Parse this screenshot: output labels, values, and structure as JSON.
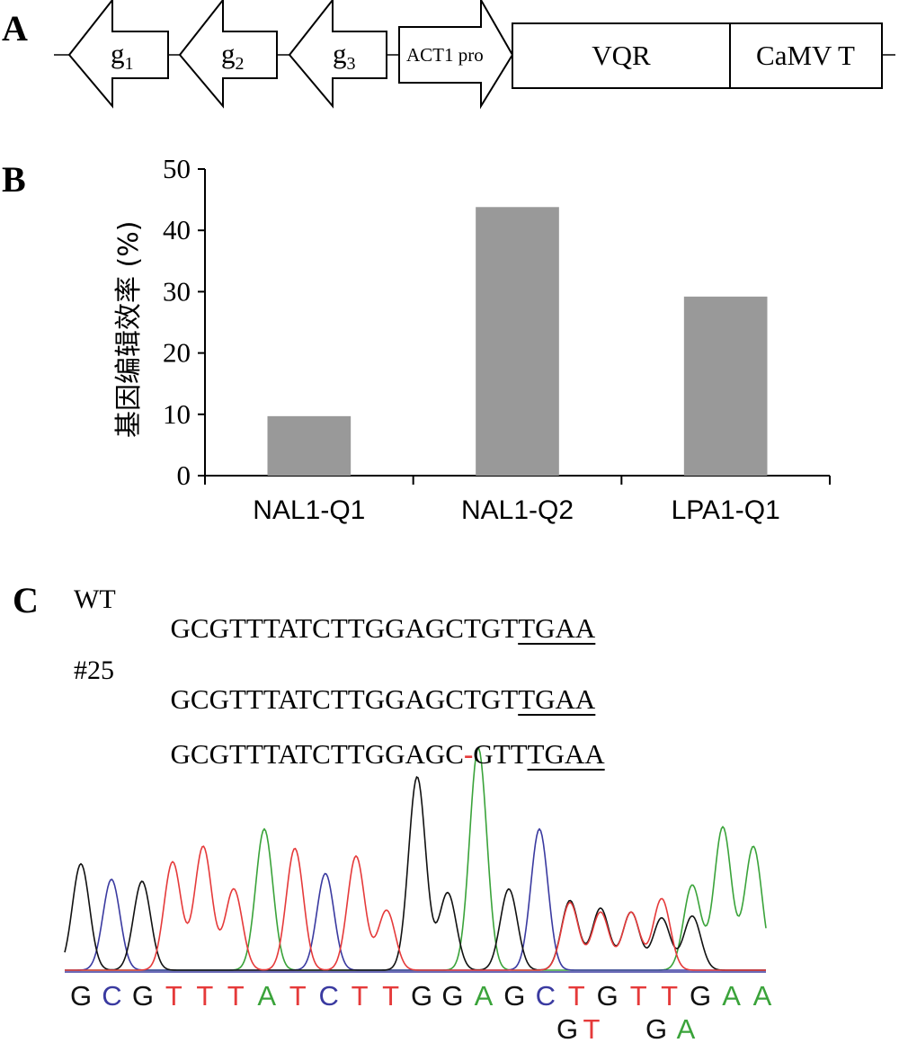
{
  "panels": {
    "a": "A",
    "b": "B",
    "c": "C"
  },
  "construct": {
    "elements": [
      {
        "label": "g",
        "subscript": "1",
        "shape": "arrow-left"
      },
      {
        "label": "g",
        "subscript": "2",
        "shape": "arrow-left"
      },
      {
        "label": "g",
        "subscript": "3",
        "shape": "arrow-left"
      },
      {
        "label": "ACT1 pro",
        "subscript": "",
        "shape": "arrow-right"
      },
      {
        "label": "VQR",
        "subscript": "",
        "shape": "box"
      },
      {
        "label": "CaMV T",
        "subscript": "",
        "shape": "box"
      }
    ]
  },
  "chart_data": {
    "type": "bar",
    "categories": [
      "NAL1-Q1",
      "NAL1-Q2",
      "LPA1-Q1"
    ],
    "values": [
      9.7,
      43.8,
      29.2
    ],
    "ylabel": "基因编辑效率 (%)",
    "xlabel": "",
    "ylim": [
      0,
      50
    ],
    "yticks": [
      0,
      10,
      20,
      30,
      40,
      50
    ],
    "grid": false,
    "bar_color": "#999999"
  },
  "sequences": {
    "wt_label": "WT",
    "wt_main": "GCGTTTATCTTGGAGCTGT",
    "wt_underlined": "TGAA",
    "mut_label": "#25",
    "mut1_main": "GCGTTTATCTTGGAGCTGT",
    "mut1_underlined": "TGAA",
    "mut2_part1": "GCGTTTATCTTGGAGC",
    "mut2_deletion": "-",
    "mut2_part2": "GTT",
    "mut2_underlined": "TGAA"
  },
  "chromatogram": {
    "base_colors": {
      "A": "#3aa33a",
      "C": "#3a3aa0",
      "G": "#111111",
      "T": "#e53a3a"
    },
    "called_bases": [
      "G",
      "C",
      "G",
      "T",
      "T",
      "T",
      "A",
      "T",
      "C",
      "T",
      "T",
      "G",
      "G",
      "A",
      "G",
      "C",
      "T",
      "G",
      "T",
      "T",
      "G",
      "A",
      "A"
    ],
    "secondary_bases": [
      "G",
      "T",
      "",
      "G",
      "A"
    ]
  }
}
